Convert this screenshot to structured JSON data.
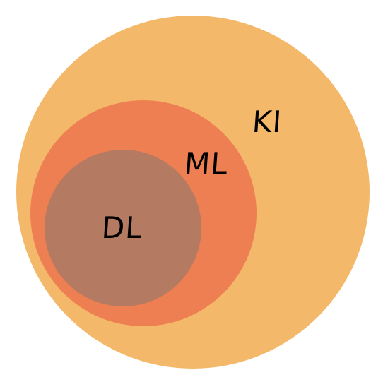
{
  "diagram": {
    "circles": [
      {
        "id": "ki",
        "label": "KI",
        "color": "#F4B86A"
      },
      {
        "id": "ml",
        "label": "ML",
        "color": "#EE7F52"
      },
      {
        "id": "dl",
        "label": "DL",
        "color": "#B57A62"
      }
    ]
  }
}
